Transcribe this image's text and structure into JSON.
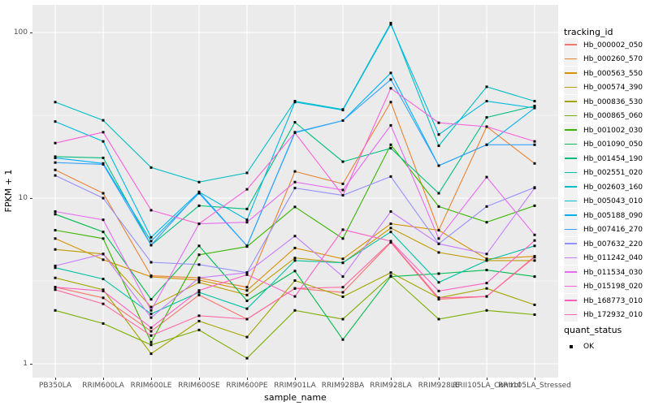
{
  "chart_data": {
    "type": "line",
    "title": "",
    "xlabel": "sample_name",
    "ylabel": "FPKM + 1",
    "y_scale": "log10",
    "ylim": [
      0.83,
      147
    ],
    "y_ticks": [
      1,
      10,
      100
    ],
    "y_tick_labels": [
      "1",
      "10",
      "100"
    ],
    "y_minor_gridlines": [
      3.162,
      31.62
    ],
    "grid": "on",
    "panel_bg": "#EBEBEB",
    "grid_color": "#FFFFFF",
    "point_shape": "black-square",
    "legend_position": "right",
    "legend_title": "tracking_id",
    "categories": [
      "PB350LA",
      "RRIM600LA",
      "RRIM600LE",
      "RRIM600SE",
      "RRIM600PE",
      "RRIM901LA",
      "RRIM928BA",
      "RRIM928LA",
      "RRIM928LE",
      "RRII105LA_Control",
      "RRII105LA_Stressed"
    ],
    "series": [
      {
        "name": "Hb_000002_050",
        "color": "#F8766D",
        "values": [
          2.9,
          2.5,
          1.57,
          2.6,
          1.86,
          2.85,
          2.7,
          5.4,
          2.45,
          2.55,
          4.45
        ]
      },
      {
        "name": "Hb_000260_570",
        "color": "#EA8331",
        "values": [
          14.8,
          10.7,
          3.4,
          3.3,
          2.9,
          14.5,
          12.2,
          38,
          6.4,
          27,
          16.2
        ]
      },
      {
        "name": "Hb_000563_550",
        "color": "#D89000",
        "values": [
          5.7,
          4.25,
          3.35,
          3.2,
          2.77,
          5.0,
          4.3,
          7.0,
          6.4,
          4.3,
          4.45
        ]
      },
      {
        "name": "Hb_000574_390",
        "color": "#C09B00",
        "values": [
          4.9,
          4.6,
          2.2,
          3.1,
          2.6,
          4.35,
          4.07,
          6.6,
          4.7,
          4.2,
          4.2
        ]
      },
      {
        "name": "Hb_000836_530",
        "color": "#A3A500",
        "values": [
          3.3,
          2.8,
          1.15,
          1.81,
          1.45,
          3.18,
          2.54,
          3.55,
          2.5,
          2.85,
          2.27
        ]
      },
      {
        "name": "Hb_000865_060",
        "color": "#7CAE00",
        "values": [
          2.1,
          1.75,
          1.3,
          1.6,
          1.08,
          2.1,
          1.86,
          3.4,
          1.86,
          2.1,
          1.98
        ]
      },
      {
        "name": "Hb_001002_030",
        "color": "#39B600",
        "values": [
          6.4,
          5.7,
          1.35,
          4.55,
          5.1,
          8.85,
          5.7,
          21,
          8.9,
          7.15,
          9.0
        ]
      },
      {
        "name": "Hb_001090_050",
        "color": "#00BB4E",
        "values": [
          8.0,
          6.25,
          2.45,
          5.15,
          2.4,
          3.63,
          1.4,
          3.36,
          3.5,
          3.68,
          3.36
        ]
      },
      {
        "name": "Hb_001454_190",
        "color": "#00BF7D",
        "values": [
          17.8,
          17.5,
          5.2,
          9.0,
          8.6,
          28.7,
          16.6,
          20,
          10.7,
          30.7,
          36
        ]
      },
      {
        "name": "Hb_002551_020",
        "color": "#00C1A3",
        "values": [
          3.8,
          3.25,
          2.0,
          2.7,
          2.15,
          4.2,
          4.07,
          6.25,
          3.1,
          4.2,
          5.15
        ]
      },
      {
        "name": "Hb_002603_160",
        "color": "#00BFC4",
        "values": [
          38,
          29.5,
          15.3,
          12.5,
          14.2,
          38.5,
          34.3,
          114,
          20.7,
          47,
          38.5
        ]
      },
      {
        "name": "Hb_005043_010",
        "color": "#00BAE0",
        "values": [
          29,
          22,
          5.8,
          10.9,
          7.4,
          38,
          34,
          112,
          24.2,
          38.5,
          35
        ]
      },
      {
        "name": "Hb_005188_090",
        "color": "#00B0F6",
        "values": [
          17.5,
          16.2,
          5.5,
          10.7,
          5.15,
          24.8,
          29.4,
          57,
          15.7,
          21,
          35
        ]
      },
      {
        "name": "Hb_007416_270",
        "color": "#35A2FF",
        "values": [
          16.4,
          16.0,
          5.2,
          10.9,
          5.15,
          25,
          29.4,
          52,
          15.7,
          21,
          21
        ]
      },
      {
        "name": "Hb_007632_220",
        "color": "#9590FF",
        "values": [
          13.7,
          10.0,
          4.1,
          3.97,
          3.55,
          11.5,
          10.4,
          13.5,
          5.3,
          8.9,
          11.6
        ]
      },
      {
        "name": "Hb_011242_040",
        "color": "#C77CFF",
        "values": [
          3.9,
          4.6,
          1.9,
          3.3,
          3.55,
          5.9,
          3.36,
          8.3,
          5.3,
          4.6,
          11.5
        ]
      },
      {
        "name": "Hb_011534_030",
        "color": "#E76BF3",
        "values": [
          8.3,
          7.4,
          2.1,
          7.0,
          7.15,
          12.5,
          11.2,
          27.5,
          5.7,
          13.4,
          6.0
        ]
      },
      {
        "name": "Hb_015198_020",
        "color": "#FA62DB",
        "values": [
          21.5,
          25,
          8.45,
          7.0,
          11.3,
          24.8,
          10.4,
          46,
          28.5,
          27,
          22
        ]
      },
      {
        "name": "Hb_168773_010",
        "color": "#FF61C3",
        "values": [
          2.9,
          2.75,
          1.65,
          2.77,
          3.45,
          2.55,
          6.45,
          5.5,
          2.75,
          3.07,
          5.55
        ]
      },
      {
        "name": "Hb_172932_010",
        "color": "#FF67A4",
        "values": [
          2.8,
          2.3,
          1.48,
          1.95,
          1.86,
          2.85,
          2.9,
          5.45,
          2.5,
          2.55,
          4.4
        ]
      }
    ],
    "quant_legend": {
      "title": "quant_status",
      "items": [
        {
          "label": "OK",
          "shape": "black-square"
        }
      ]
    }
  }
}
